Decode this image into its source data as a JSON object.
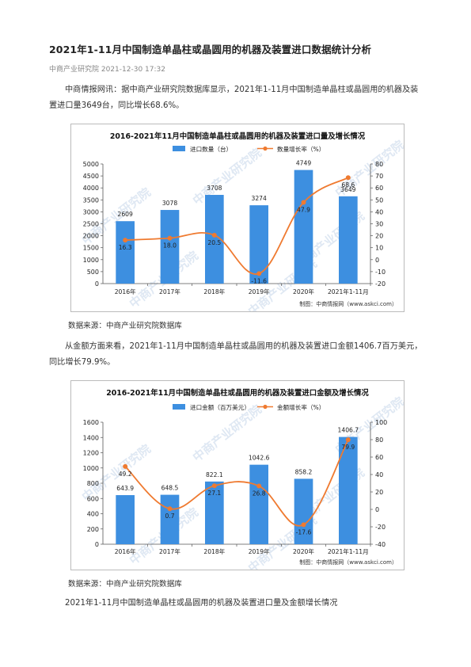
{
  "article": {
    "title": "2021年1-11月中国制造单晶柱或晶圆用的机器及装置进口数据统计分析",
    "meta": "中商产业研究院 2021-12-30 17:32",
    "para1": "中商情报网讯：据中商产业研究院数据库显示，2021年1-11月中国制造单晶柱或晶圆用的机器及装置进口量3649台，同比增长68.6%。",
    "source1": "数据来源：中商产业研究院数据库",
    "para2": "从金额方面来看，2021年1-11月中国制造单晶柱或晶圆用的机器及装置进口金额1406.7百万美元，同比增长79.9%。",
    "source2": "数据来源：中商产业研究院数据库",
    "para3": "2021年1-11月中国制造单晶柱或晶圆用的机器及装置进口量及金额增长情况"
  },
  "watermark": "中商产业研究院",
  "chart_data": [
    {
      "type": "bar",
      "title": "2016-2021年11月中国制造单晶柱或晶圆用的机器及装置进口量及增长情况",
      "categories": [
        "2016年",
        "2017年",
        "2018年",
        "2019年",
        "2020年",
        "2021年1-11月"
      ],
      "series": [
        {
          "name": "进口数量（台）",
          "type": "bar",
          "axis": "left",
          "values": [
            2609,
            3078,
            3708,
            3274,
            4749,
            3649
          ],
          "labels": [
            "2609",
            "3078",
            "3708",
            "3274",
            "4749",
            "3649"
          ],
          "color": "#3d8fe0"
        },
        {
          "name": "数量增长率（%）",
          "type": "line",
          "axis": "right",
          "values": [
            16.3,
            18.0,
            20.5,
            -11.6,
            47.9,
            68.6
          ],
          "labels": [
            "16.3",
            "18.0",
            "20.5",
            "-11.6",
            "47.9",
            "68.6"
          ],
          "color": "#ef7a30"
        }
      ],
      "yticks_left": [
        "0",
        "500",
        "1000",
        "1500",
        "2000",
        "2500",
        "3000",
        "3500",
        "4000",
        "4500",
        "5000"
      ],
      "ylim_left": [
        0,
        5000
      ],
      "yticks_right": [
        "-20",
        "-10",
        "0",
        "10",
        "20",
        "30",
        "40",
        "50",
        "60",
        "70",
        "80"
      ],
      "ylim_right": [
        -20,
        80
      ],
      "credit": "制图：中商情报网（www.askci.com）",
      "legend": "top-center",
      "grid": false
    },
    {
      "type": "bar",
      "title": "2016-2021年11月中国制造单晶柱或晶圆用的机器及装置进口金额及增长情况",
      "categories": [
        "2016年",
        "2017年",
        "2018年",
        "2019年",
        "2020年",
        "2021年1-11月"
      ],
      "series": [
        {
          "name": "进口金额（百万美元）",
          "type": "bar",
          "axis": "left",
          "values": [
            643.9,
            648.5,
            822.1,
            1042.6,
            858.2,
            1406.7
          ],
          "labels": [
            "643.9",
            "648.5",
            "822.1",
            "1042.6",
            "858.2",
            "1406.7"
          ],
          "color": "#3d8fe0"
        },
        {
          "name": "金额增长率（%）",
          "type": "line",
          "axis": "right",
          "values": [
            49.2,
            0.7,
            27.1,
            26.8,
            -17.6,
            79.9
          ],
          "labels": [
            "49.2",
            "0.7",
            "27.1",
            "26.8",
            "-17.6",
            "79.9"
          ],
          "color": "#ef7a30"
        }
      ],
      "yticks_left": [
        "0",
        "200",
        "400",
        "600",
        "800",
        "1000",
        "1200",
        "1400",
        "1600"
      ],
      "ylim_left": [
        0,
        1600
      ],
      "yticks_right": [
        "-40",
        "-20",
        "0",
        "20",
        "40",
        "60",
        "80",
        "100"
      ],
      "ylim_right": [
        -40,
        100
      ],
      "credit": "制图：中商情报网（www.askci.com）",
      "legend": "top-center",
      "grid": false
    }
  ]
}
